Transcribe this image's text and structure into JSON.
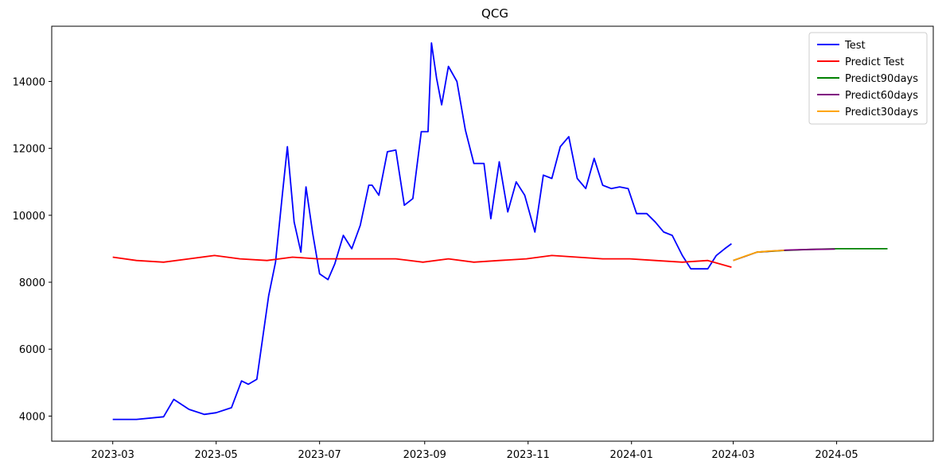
{
  "chart_data": {
    "type": "line",
    "title": "QCG",
    "xlabel": "",
    "ylabel": "",
    "x_ticks": [
      "2023-03",
      "2023-05",
      "2023-07",
      "2023-09",
      "2023-11",
      "2024-01",
      "2024-03",
      "2024-05"
    ],
    "y_ticks": [
      4000,
      6000,
      8000,
      10000,
      12000,
      14000
    ],
    "xlim": [
      "2023-01-24",
      "2024-06-27"
    ],
    "ylim": [
      3250,
      15650
    ],
    "grid": false,
    "legend_position": "top-right",
    "series": [
      {
        "name": "Test",
        "color": "#0000ff",
        "x": [
          "2023-03-01",
          "2023-03-15",
          "2023-03-31",
          "2023-04-06",
          "2023-04-15",
          "2023-04-24",
          "2023-05-01",
          "2023-05-10",
          "2023-05-16",
          "2023-05-20",
          "2023-05-25",
          "2023-06-01",
          "2023-06-05",
          "2023-06-09",
          "2023-06-12",
          "2023-06-16",
          "2023-06-20",
          "2023-06-23",
          "2023-06-27",
          "2023-07-01",
          "2023-07-06",
          "2023-07-10",
          "2023-07-15",
          "2023-07-20",
          "2023-07-25",
          "2023-07-30",
          "2023-08-01",
          "2023-08-05",
          "2023-08-10",
          "2023-08-15",
          "2023-08-20",
          "2023-08-25",
          "2023-08-30",
          "2023-09-03",
          "2023-09-05",
          "2023-09-08",
          "2023-09-11",
          "2023-09-15",
          "2023-09-20",
          "2023-09-25",
          "2023-09-30",
          "2023-10-06",
          "2023-10-10",
          "2023-10-15",
          "2023-10-20",
          "2023-10-25",
          "2023-10-30",
          "2023-11-05",
          "2023-11-10",
          "2023-11-15",
          "2023-11-20",
          "2023-11-25",
          "2023-11-30",
          "2023-12-05",
          "2023-12-10",
          "2023-12-15",
          "2023-12-20",
          "2023-12-25",
          "2023-12-30",
          "2024-01-04",
          "2024-01-10",
          "2024-01-15",
          "2024-01-20",
          "2024-01-25",
          "2024-01-31",
          "2024-02-05",
          "2024-02-10",
          "2024-02-15",
          "2024-02-20",
          "2024-02-25",
          "2024-02-29"
        ],
        "y": [
          3900,
          3900,
          3980,
          4500,
          4200,
          4050,
          4100,
          4250,
          5050,
          4950,
          5100,
          7600,
          8600,
          10600,
          12050,
          9800,
          8900,
          10850,
          9450,
          8250,
          8080,
          8550,
          9400,
          9000,
          9700,
          10900,
          10900,
          10600,
          11900,
          11950,
          10300,
          10500,
          12500,
          12500,
          15150,
          14100,
          13300,
          14450,
          14000,
          12550,
          11550,
          11550,
          9900,
          11600,
          10100,
          11000,
          10600,
          9500,
          11200,
          11100,
          12050,
          12350,
          11100,
          10800,
          11700,
          10900,
          10800,
          10850,
          10800,
          10050,
          10050,
          9800,
          9500,
          9400,
          8800,
          8400,
          8400,
          8400,
          8800,
          9000,
          9150
        ]
      },
      {
        "name": "Predict Test",
        "color": "#ff0000",
        "x": [
          "2023-03-01",
          "2023-03-15",
          "2023-03-31",
          "2023-04-15",
          "2023-04-30",
          "2023-05-15",
          "2023-05-31",
          "2023-06-15",
          "2023-06-30",
          "2023-07-15",
          "2023-07-31",
          "2023-08-15",
          "2023-08-31",
          "2023-09-15",
          "2023-09-30",
          "2023-10-15",
          "2023-10-31",
          "2023-11-15",
          "2023-11-30",
          "2023-12-15",
          "2023-12-31",
          "2024-01-15",
          "2024-01-31",
          "2024-02-15",
          "2024-02-29"
        ],
        "y": [
          8750,
          8650,
          8600,
          8700,
          8800,
          8700,
          8650,
          8750,
          8700,
          8700,
          8700,
          8700,
          8600,
          8700,
          8600,
          8650,
          8700,
          8800,
          8750,
          8700,
          8700,
          8650,
          8600,
          8650,
          8450
        ]
      },
      {
        "name": "Predict90days",
        "color": "#008000",
        "x": [
          "2024-03-01",
          "2024-03-15",
          "2024-04-01",
          "2024-04-15",
          "2024-05-01",
          "2024-05-31"
        ],
        "y": [
          8650,
          8900,
          8950,
          8980,
          9000,
          9000
        ]
      },
      {
        "name": "Predict60days",
        "color": "#800080",
        "x": [
          "2024-03-01",
          "2024-03-15",
          "2024-04-01",
          "2024-04-15",
          "2024-04-30"
        ],
        "y": [
          8650,
          8900,
          8960,
          8980,
          8990
        ]
      },
      {
        "name": "Predict30days",
        "color": "#ffa500",
        "x": [
          "2024-03-01",
          "2024-03-08",
          "2024-03-15",
          "2024-03-22",
          "2024-03-31"
        ],
        "y": [
          8650,
          8780,
          8900,
          8930,
          8950
        ]
      }
    ]
  }
}
